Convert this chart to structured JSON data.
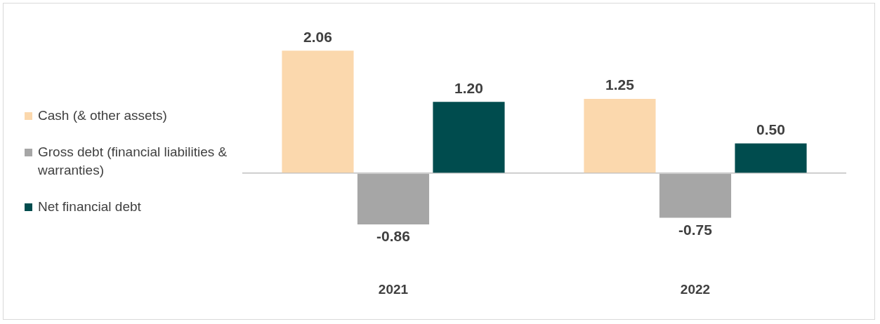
{
  "chart_data": {
    "type": "bar",
    "categories": [
      "2021",
      "2022"
    ],
    "series": [
      {
        "name": "Cash (& other assets)",
        "color": "#fbd8ad",
        "values": [
          2.06,
          1.25
        ],
        "value_labels": [
          "2.06",
          "1.25"
        ]
      },
      {
        "name": "Gross debt (financial liabilities & warranties)",
        "color": "#a6a6a6",
        "values": [
          -0.86,
          -0.75
        ],
        "value_labels": [
          "-0.86",
          "-0.75"
        ]
      },
      {
        "name": "Net financial debt",
        "color": "#004c4e",
        "values": [
          1.2,
          0.5
        ],
        "value_labels": [
          "1.20",
          "0.50"
        ]
      }
    ],
    "legend": "left",
    "grid": false
  }
}
